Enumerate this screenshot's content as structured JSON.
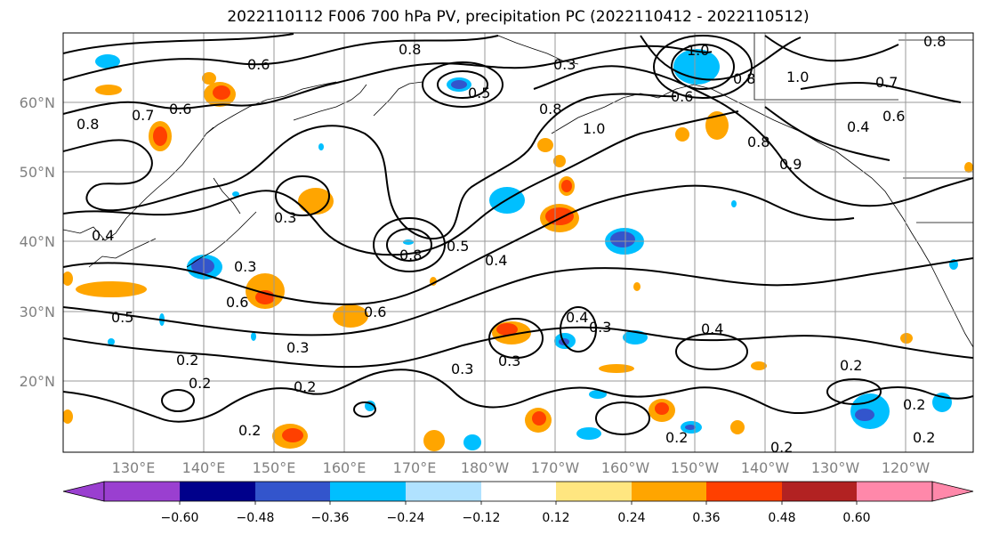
{
  "title": "2022110112 F006 700 hPa PV, precipitation PC (2022110412 - 2022110512)",
  "map": {
    "lat_labels": [
      "60°N",
      "50°N",
      "40°N",
      "30°N",
      "20°N"
    ],
    "lon_labels": [
      "130°E",
      "140°E",
      "150°E",
      "160°E",
      "170°E",
      "180°W",
      "170°W",
      "160°W",
      "150°W",
      "140°W",
      "130°W",
      "120°W"
    ],
    "contour_labels": [
      "0.8",
      "0.6",
      "0.7",
      "0.6",
      "0.8",
      "0.5",
      "0.3",
      "0.8",
      "1.0",
      "0.8",
      "1.0",
      "0.7",
      "0.6",
      "0.4",
      "0.8",
      "0.6",
      "1.0",
      "0.8",
      "0.9",
      "0.4",
      "0.3",
      "0.3",
      "0.8",
      "0.5",
      "0.4",
      "0.5",
      "0.6",
      "0.6",
      "0.3",
      "0.2",
      "0.2",
      "0.2",
      "0.3",
      "0.3",
      "0.4",
      "0.3",
      "0.4",
      "0.2",
      "0.2",
      "0.2",
      "0.2",
      "0.2",
      "0.2"
    ]
  },
  "colorbar": {
    "tick_labels": [
      "−0.60",
      "−0.48",
      "−0.36",
      "−0.24",
      "−0.12",
      "0.12",
      "0.24",
      "0.36",
      "0.48",
      "0.60"
    ],
    "colors": [
      "#9a3fd0",
      "#00008b",
      "#3355cc",
      "#00bfff",
      "#b0e2ff",
      "#ffffff",
      "#ffe680",
      "#ffa500",
      "#ff4000",
      "#b22222",
      "#ff88aa"
    ]
  },
  "colors": {
    "grid": "#999999",
    "axis_label": "#808080",
    "contour": "#000000"
  }
}
